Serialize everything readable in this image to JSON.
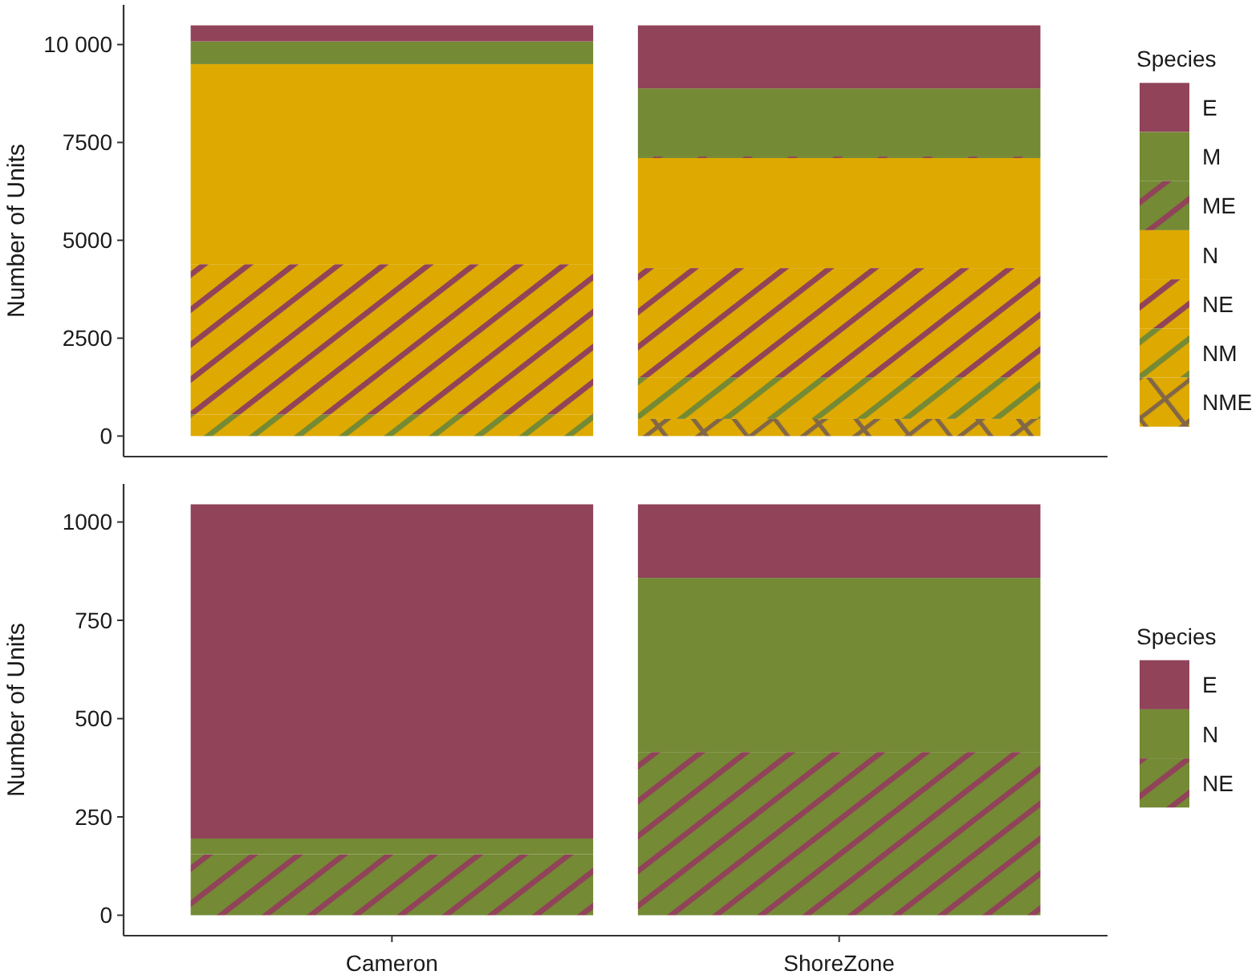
{
  "chart_data": [
    {
      "type": "bar",
      "stacked": true,
      "categories": [
        "Cameron",
        "ShoreZone"
      ],
      "ylabel": "Number of Units",
      "legend_title": "Species",
      "legend": "right",
      "tick_labels": "y",
      "ylim": [
        -525,
        11015
      ],
      "yticks": [
        0,
        2500,
        5000,
        7500,
        {
          "value": 10000,
          "label": "10 000"
        }
      ],
      "series": [
        {
          "name": "NME",
          "color": "#dea900",
          "values": [
            0,
            440
          ]
        },
        {
          "name": "NM",
          "color": "#dea900",
          "values": [
            550,
            1060
          ]
        },
        {
          "name": "NE",
          "color": "#dea900",
          "values": [
            3840,
            2790
          ]
        },
        {
          "name": "N",
          "color": "#dea900",
          "values": [
            5110,
            2810
          ]
        },
        {
          "name": "ME",
          "color": "#748a35",
          "values": [
            0,
            40
          ]
        },
        {
          "name": "M",
          "color": "#748a35",
          "values": [
            580,
            1740
          ]
        },
        {
          "name": "E",
          "color": "#904359",
          "values": [
            410,
            1610
          ]
        }
      ]
    },
    {
      "type": "bar",
      "stacked": true,
      "categories": [
        "Cameron",
        "ShoreZone"
      ],
      "ylabel": "Number of Units",
      "legend_title": "Species",
      "legend": "right",
      "ylim": [
        -52,
        1097
      ],
      "yticks": [
        0,
        250,
        500,
        750,
        1000
      ],
      "series": [
        {
          "name": "NE",
          "color": "#748a35",
          "values": [
            155,
            415
          ]
        },
        {
          "name": "N",
          "color": "#748a35",
          "values": [
            40,
            443
          ]
        },
        {
          "name": "E",
          "color": "#904359",
          "values": [
            850,
            187
          ]
        }
      ]
    }
  ]
}
